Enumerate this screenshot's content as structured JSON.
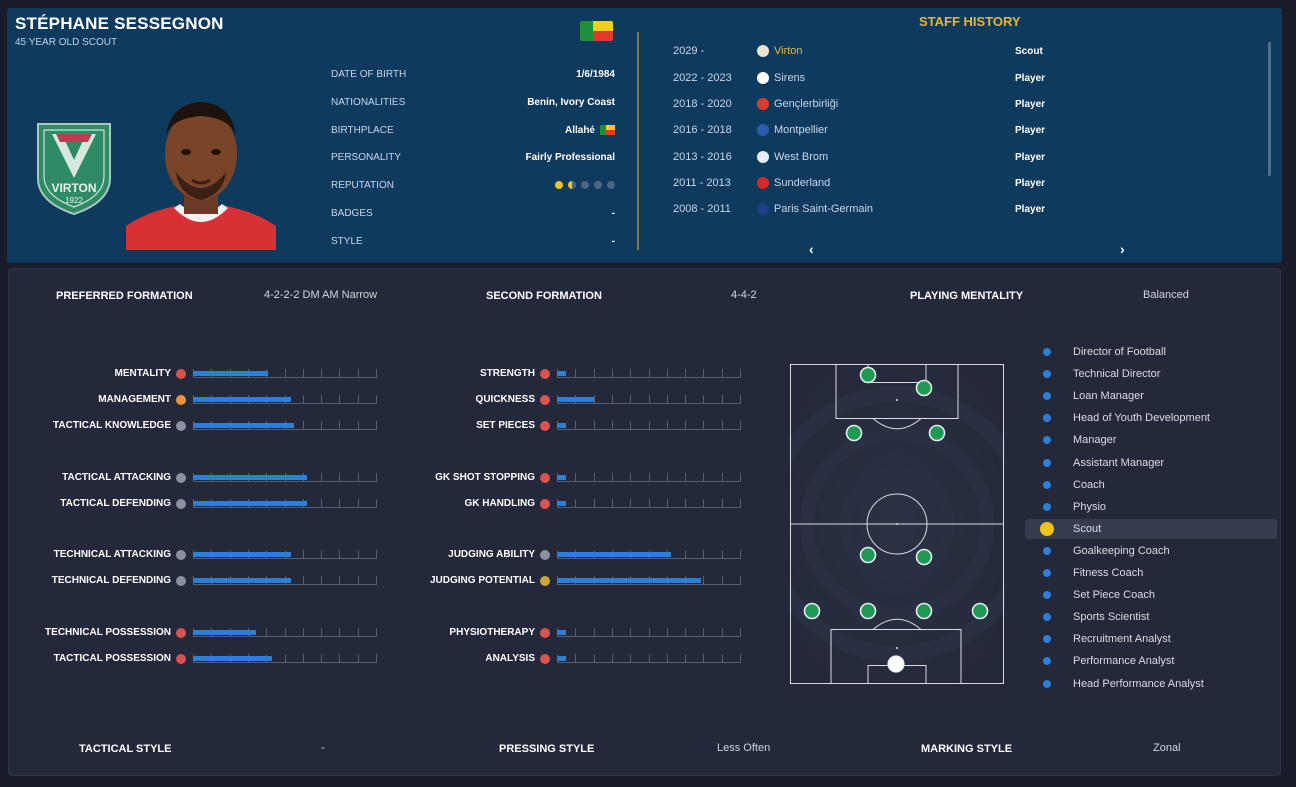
{
  "profile": {
    "name": "STÉPHANE SESSEGNON",
    "subtitle": "45 YEAR OLD SCOUT",
    "club_crest_text": "VIRTON",
    "club_crest_year": "1922",
    "rows": [
      {
        "label": "DATE OF BIRTH",
        "value": "1/6/1984"
      },
      {
        "label": "NATIONALITIES",
        "value": "Benin, Ivory Coast"
      },
      {
        "label": "BIRTHPLACE",
        "value": "Allahé"
      },
      {
        "label": "PERSONALITY",
        "value": "Fairly Professional"
      },
      {
        "label": "REPUTATION",
        "value": ""
      },
      {
        "label": "BADGES",
        "value": "-"
      },
      {
        "label": "STYLE",
        "value": "-"
      }
    ],
    "reputation": {
      "stars": 1.5,
      "max": 5,
      "color": "#f0c419"
    }
  },
  "staff_history": {
    "title": "STAFF HISTORY",
    "entries": [
      {
        "years": "2029 -",
        "club": "Virton",
        "role": "Scout",
        "color": "#e8e4d0",
        "current": true
      },
      {
        "years": "2022 - 2023",
        "club": "Sirens",
        "role": "Player",
        "color": "#ffffff"
      },
      {
        "years": "2018 - 2020",
        "club": "Gençlerbirliği",
        "role": "Player",
        "color": "#e03a2f"
      },
      {
        "years": "2016 - 2018",
        "club": "Montpellier",
        "role": "Player",
        "color": "#2a5db0"
      },
      {
        "years": "2013 - 2016",
        "club": "West Brom",
        "role": "Player",
        "color": "#e8eef8"
      },
      {
        "years": "2011 - 2013",
        "club": "Sunderland",
        "role": "Player",
        "color": "#d62828"
      },
      {
        "years": "2008 - 2011",
        "club": "Paris Saint-Germain",
        "role": "Player",
        "color": "#1d3f8a"
      }
    ],
    "prev": "‹",
    "next": "›"
  },
  "tactics": {
    "preferred_formation": {
      "label": "PREFERRED FORMATION",
      "value": "4-2-2-2 DM AM Narrow"
    },
    "second_formation": {
      "label": "SECOND FORMATION",
      "value": "4-4-2"
    },
    "playing_mentality": {
      "label": "PLAYING MENTALITY",
      "value": "Balanced"
    },
    "tactical_style": {
      "label": "TACTICAL STYLE",
      "value": "-"
    },
    "pressing_style": {
      "label": "PRESSING STYLE",
      "value": "Less Often"
    },
    "marking_style": {
      "label": "MARKING STYLE",
      "value": "Zonal"
    }
  },
  "attributes_left": [
    {
      "label": "MENTALITY",
      "value": 0.41,
      "icon": "#d9534f"
    },
    {
      "label": "MANAGEMENT",
      "value": 0.53,
      "icon": "#e8943a"
    },
    {
      "label": "TACTICAL KNOWLEDGE",
      "value": 0.55,
      "icon": "#8a90a0"
    },
    {
      "label": "TACTICAL ATTACKING",
      "value": 0.62,
      "icon": "#8a90a0"
    },
    {
      "label": "TACTICAL DEFENDING",
      "value": 0.62,
      "icon": "#8a90a0"
    },
    {
      "label": "TECHNICAL ATTACKING",
      "value": 0.53,
      "icon": "#8a90a0"
    },
    {
      "label": "TECHNICAL DEFENDING",
      "value": 0.53,
      "icon": "#8a90a0"
    },
    {
      "label": "TECHNICAL POSSESSION",
      "value": 0.34,
      "icon": "#d9534f"
    },
    {
      "label": "TACTICAL POSSESSION",
      "value": 0.43,
      "icon": "#d9534f"
    }
  ],
  "attributes_mid": [
    {
      "label": "STRENGTH",
      "value": 0.05,
      "icon": "#d9534f"
    },
    {
      "label": "QUICKNESS",
      "value": 0.2,
      "icon": "#d9534f"
    },
    {
      "label": "SET PIECES",
      "value": 0.05,
      "icon": "#d9534f"
    },
    {
      "label": "GK SHOT STOPPING",
      "value": 0.05,
      "icon": "#d9534f"
    },
    {
      "label": "GK HANDLING",
      "value": 0.05,
      "icon": "#d9534f"
    },
    {
      "label": "JUDGING ABILITY",
      "value": 0.62,
      "icon": "#8a90a0"
    },
    {
      "label": "JUDGING POTENTIAL",
      "value": 0.78,
      "icon": "#c9a635"
    },
    {
      "label": "PHYSIOTHERAPY",
      "value": 0.05,
      "icon": "#d9534f"
    },
    {
      "label": "ANALYSIS",
      "value": 0.05,
      "icon": "#d9534f"
    }
  ],
  "staff_roles": [
    "Director of Football",
    "Technical Director",
    "Loan Manager",
    "Head of Youth Development",
    "Manager",
    "Assistant Manager",
    "Coach",
    "Physio",
    "Scout",
    "Goalkeeping Coach",
    "Fitness Coach",
    "Set Piece Coach",
    "Sports Scientist",
    "Recruitment Analyst",
    "Performance Analyst",
    "Head Performance Analyst"
  ],
  "active_role": "Scout"
}
